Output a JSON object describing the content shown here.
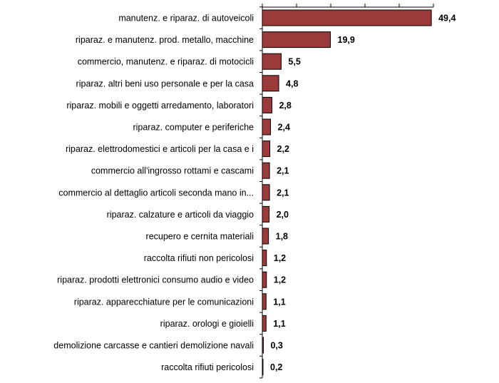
{
  "chart_data": {
    "type": "bar",
    "orientation": "horizontal",
    "bar_color": "#9B3A3A",
    "categories": [
      "manutenz. e riparaz. di autoveicoli",
      "riparaz. e manutenz. prod. metallo, macchine",
      "commercio, manutenz. e riparaz. di motocicli",
      "riparaz. altri beni uso personale e per la casa",
      "riparaz. mobili e oggetti arredamento, laboratori",
      "riparaz. computer e periferiche",
      "riparaz. elettrodomestici e articoli per la casa e i",
      "commercio all'ingrosso rottami e cascami",
      "commercio al dettaglio articoli seconda mano in...",
      "riparaz. calzature e articoli da viaggio",
      "recupero e cernita materiali",
      "raccolta rifiuti non pericolosi",
      "riparaz. prodotti elettronici consumo audio e video",
      "riparaz. apparecchiature per le comunicazioni",
      "riparaz. orologi e gioielli",
      "demolizione carcasse e cantieri demolizione navali",
      "raccolta rifiuti pericolosi"
    ],
    "values": [
      49.4,
      19.9,
      5.5,
      4.8,
      2.8,
      2.4,
      2.2,
      2.1,
      2.1,
      2.0,
      1.8,
      1.2,
      1.2,
      1.1,
      1.1,
      0.3,
      0.2
    ],
    "value_labels": [
      "49,4",
      "19,9",
      "5,5",
      "4,8",
      "2,8",
      "2,4",
      "2,2",
      "2,1",
      "2,1",
      "2,0",
      "1,8",
      "1,2",
      "1,2",
      "1,1",
      "1,1",
      "0,3",
      "0,2"
    ],
    "xlim": [
      0,
      50
    ],
    "x_tick_step": 10,
    "x_tick_labels_shown": false,
    "axis_position": "top",
    "grid": false,
    "legend": "none"
  }
}
